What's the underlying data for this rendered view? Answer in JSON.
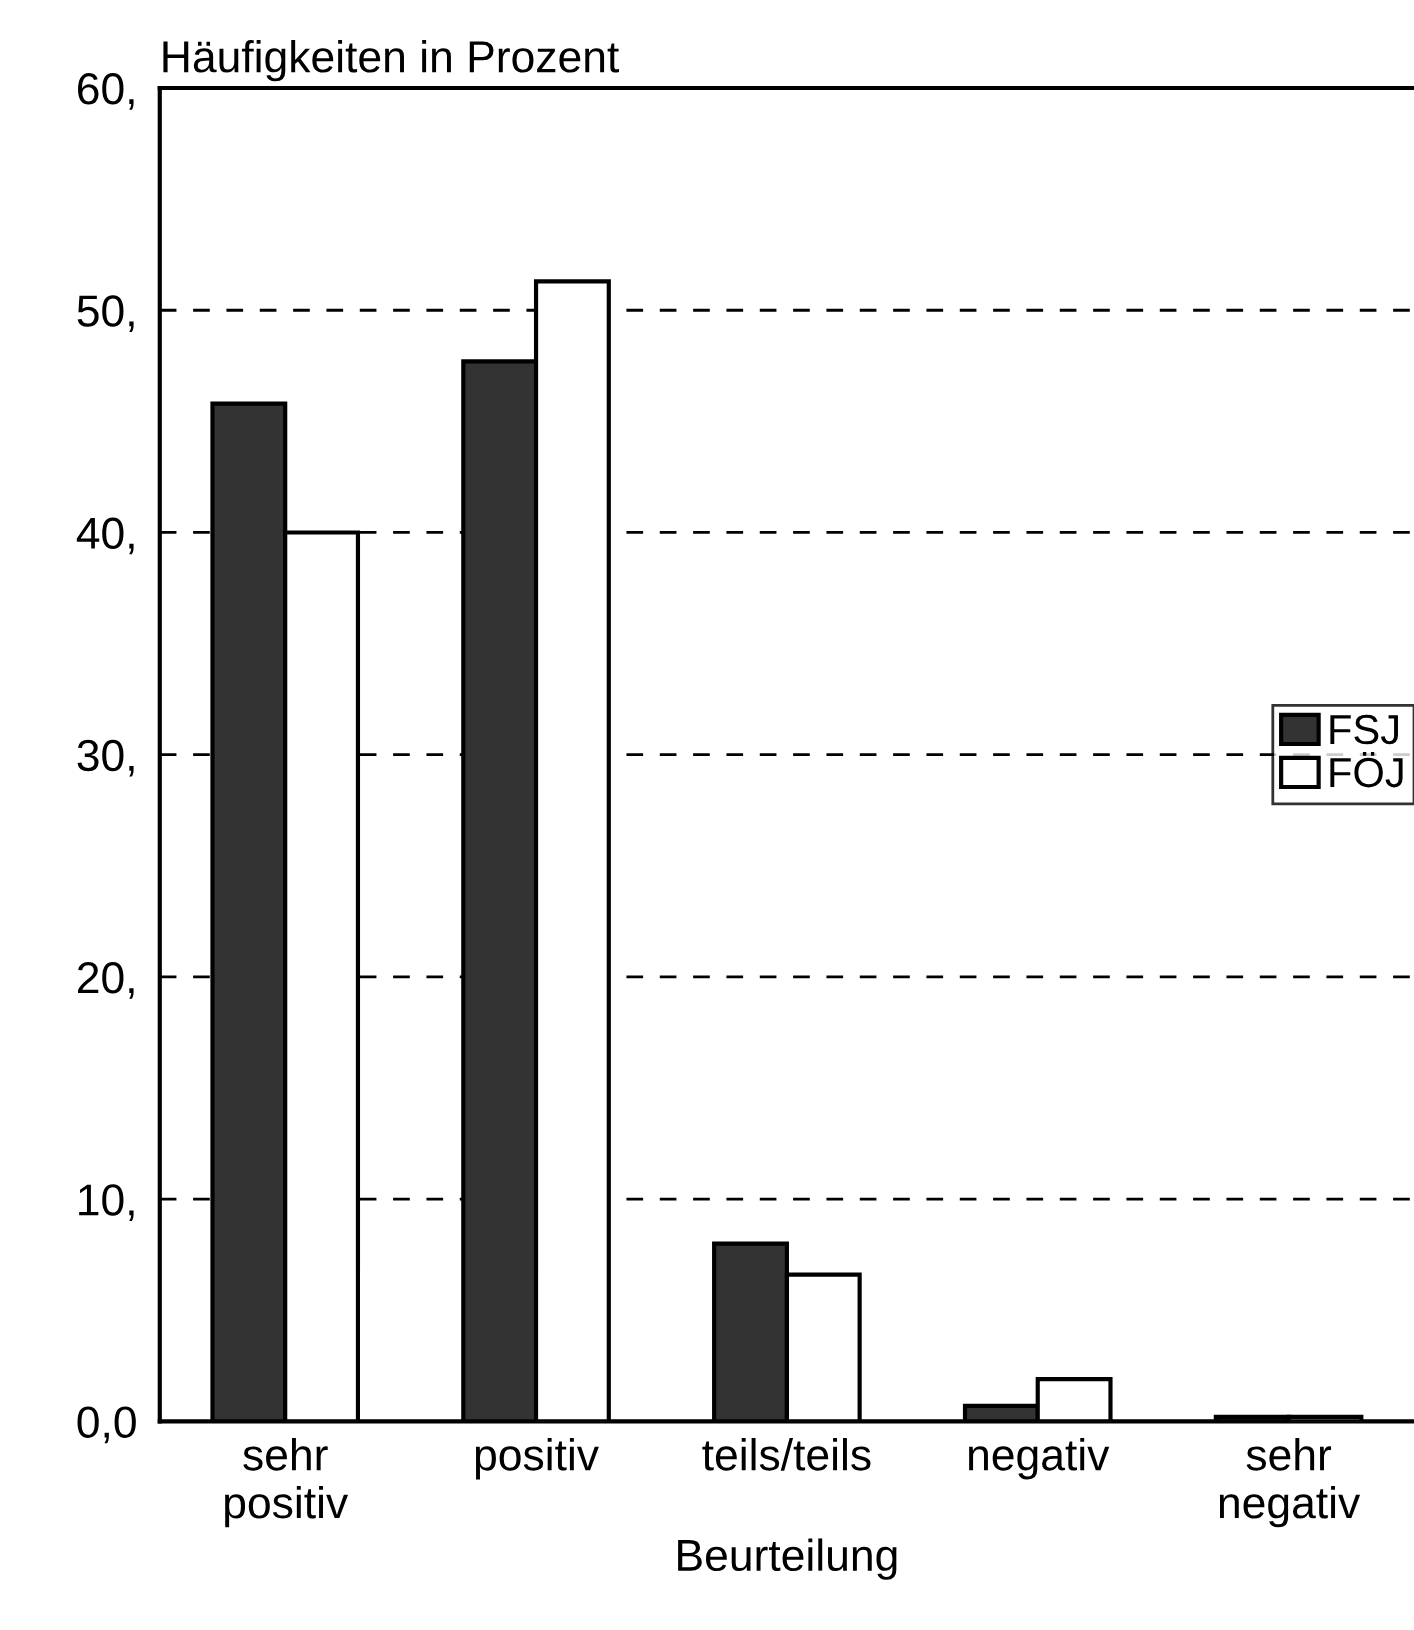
{
  "chart_data": {
    "type": "bar",
    "title": "Häufigkeiten in Prozent",
    "xlabel": "Beurteilung",
    "categories": [
      "sehr\npositiv",
      "positiv",
      "teils/teils",
      "negativ",
      "sehr\nnegativ"
    ],
    "series": [
      {
        "name": "FSJ",
        "color": "#333333",
        "values": [
          45.8,
          47.7,
          8.0,
          0.7,
          0.2
        ]
      },
      {
        "name": "FÖJ",
        "color": "#ffffff",
        "values": [
          40.0,
          51.3,
          6.6,
          1.9,
          0.2
        ]
      }
    ],
    "ylim": [
      0,
      60
    ],
    "yticks": [
      {
        "value": 0,
        "label": "0,0"
      },
      {
        "value": 10,
        "label": "10,"
      },
      {
        "value": 20,
        "label": "20,"
      },
      {
        "value": 30,
        "label": "30,"
      },
      {
        "value": 40,
        "label": "40,"
      },
      {
        "value": 50,
        "label": "50,"
      },
      {
        "value": 60,
        "label": "60,"
      }
    ],
    "grid": "y",
    "legend": "right"
  }
}
